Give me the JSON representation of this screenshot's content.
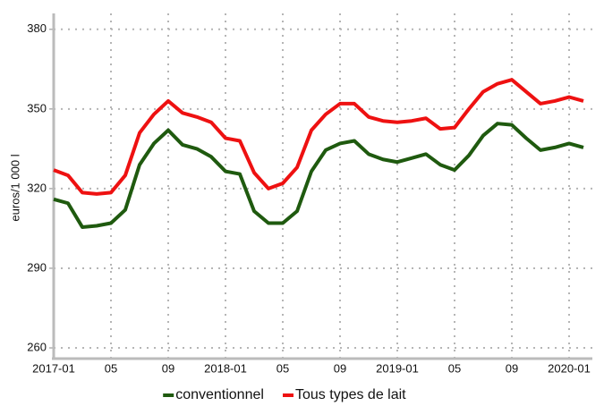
{
  "chart_data": {
    "type": "line",
    "y_label": "euros/1 000 l",
    "categories": [
      "2017-01",
      null,
      null,
      null,
      "05",
      null,
      null,
      null,
      "09",
      null,
      null,
      null,
      "2018-01",
      null,
      null,
      null,
      "05",
      null,
      null,
      null,
      "09",
      null,
      null,
      null,
      "2019-01",
      null,
      null,
      null,
      "05",
      null,
      null,
      null,
      "09",
      null,
      null,
      null,
      "2020-01",
      null
    ],
    "series": [
      {
        "name": "conventionnel",
        "color": "#1f5a0f",
        "values": [
          316,
          314.5,
          305.5,
          306,
          307,
          312,
          329,
          337,
          342,
          336.5,
          335,
          332,
          326.5,
          325.5,
          311.5,
          307,
          307,
          311.5,
          326.5,
          334.5,
          337,
          338,
          333,
          331,
          330,
          331.5,
          333,
          329,
          327,
          332.5,
          340,
          344.5,
          344,
          339,
          334.5,
          335.5,
          337,
          335.5
        ]
      },
      {
        "name": "Tous types de lait",
        "color": "#ee1111",
        "values": [
          327,
          325,
          318.5,
          318,
          318.5,
          325,
          341,
          348,
          353,
          348.5,
          347,
          345,
          339,
          338,
          326,
          320,
          322,
          328,
          342,
          348,
          352,
          352,
          347,
          345.5,
          345,
          345.5,
          346.5,
          342.5,
          343,
          350,
          356.5,
          359.5,
          361,
          356.5,
          352,
          353,
          354.5,
          353
        ]
      }
    ],
    "ylim": [
      256.3,
      386
    ],
    "yticks": [
      260,
      290,
      320,
      350,
      380
    ],
    "grid": true,
    "legend": "bottom"
  }
}
